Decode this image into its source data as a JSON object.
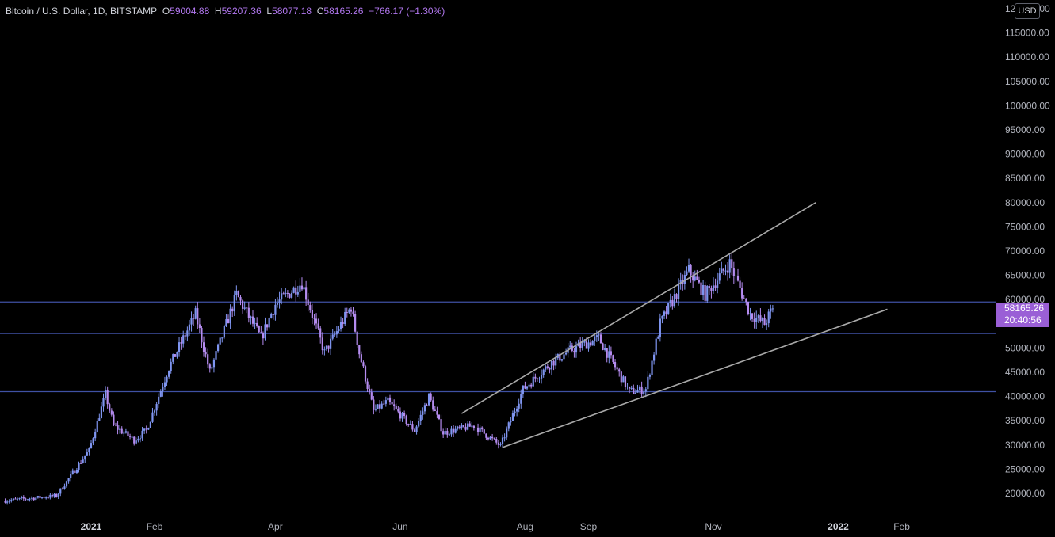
{
  "legend": {
    "symbol": "Bitcoin / U.S. Dollar, 1D, BITSTAMP",
    "open_label": "O",
    "open": "59004.88",
    "high_label": "H",
    "high": "59207.36",
    "low_label": "L",
    "low": "58077.18",
    "close_label": "C",
    "close": "58165.26",
    "change": "−766.17 (−1.30%)"
  },
  "currency": "USD",
  "last_price": {
    "price": "58165.26",
    "countdown": "20:40:56"
  },
  "colors": {
    "background": "#000000",
    "candle": "#7f95f0",
    "candle_alt": "#b58cf0",
    "horizontal_line": "#3f51a3",
    "trend_line": "#a8a8a8",
    "accent": "#9a5fd6"
  },
  "chart_data": {
    "type": "candlestick",
    "title": "Bitcoin / U.S. Dollar, 1D, BITSTAMP",
    "ylim": [
      15000,
      120000
    ],
    "y_ticks": [
      "120000.00",
      "115000.00",
      "110000.00",
      "105000.00",
      "100000.00",
      "95000.00",
      "90000.00",
      "85000.00",
      "80000.00",
      "75000.00",
      "70000.00",
      "65000.00",
      "60000.00",
      "55000.00",
      "50000.00",
      "45000.00",
      "40000.00",
      "35000.00",
      "30000.00",
      "25000.00",
      "20000.00"
    ],
    "x_ticks": [
      {
        "label": "2021",
        "date": "2021-01-01",
        "bold": true
      },
      {
        "label": "Feb",
        "date": "2021-02-01"
      },
      {
        "label": "Apr",
        "date": "2021-04-01"
      },
      {
        "label": "Jun",
        "date": "2021-06-01"
      },
      {
        "label": "Aug",
        "date": "2021-08-01"
      },
      {
        "label": "Sep",
        "date": "2021-09-01"
      },
      {
        "label": "Nov",
        "date": "2021-11-01"
      },
      {
        "label": "2022",
        "date": "2022-01-01",
        "bold": true
      },
      {
        "label": "Feb",
        "date": "2022-02-01"
      }
    ],
    "price_path": [
      [
        "2020-11-20",
        18500
      ],
      [
        "2020-12-15",
        19500
      ],
      [
        "2020-12-31",
        28900
      ],
      [
        "2021-01-08",
        40500
      ],
      [
        "2021-01-12",
        34000
      ],
      [
        "2021-01-22",
        31000
      ],
      [
        "2021-01-28",
        33000
      ],
      [
        "2021-02-08",
        46000
      ],
      [
        "2021-02-21",
        57000
      ],
      [
        "2021-02-28",
        45000
      ],
      [
        "2021-03-13",
        61000
      ],
      [
        "2021-03-25",
        52000
      ],
      [
        "2021-04-01",
        59000
      ],
      [
        "2021-04-14",
        63500
      ],
      [
        "2021-04-25",
        49000
      ],
      [
        "2021-05-08",
        58500
      ],
      [
        "2021-05-12",
        49000
      ],
      [
        "2021-05-19",
        37000
      ],
      [
        "2021-05-26",
        39000
      ],
      [
        "2021-06-08",
        33000
      ],
      [
        "2021-06-15",
        40000
      ],
      [
        "2021-06-22",
        32500
      ],
      [
        "2021-07-07",
        34000
      ],
      [
        "2021-07-20",
        29800
      ],
      [
        "2021-07-31",
        41500
      ],
      [
        "2021-08-14",
        47000
      ],
      [
        "2021-08-23",
        49500
      ],
      [
        "2021-09-06",
        52000
      ],
      [
        "2021-09-21",
        41000
      ],
      [
        "2021-09-29",
        41500
      ],
      [
        "2021-10-06",
        55000
      ],
      [
        "2021-10-20",
        66000
      ],
      [
        "2021-10-28",
        61000
      ],
      [
        "2021-11-09",
        67500
      ],
      [
        "2021-11-19",
        57000
      ],
      [
        "2021-11-26",
        55000
      ],
      [
        "2021-11-30",
        58165
      ]
    ],
    "horizontal_lines": [
      59500,
      53000,
      41000
    ],
    "trend_lines": [
      {
        "from": [
          "2021-07-01",
          36500
        ],
        "to": [
          "2021-12-21",
          80000
        ]
      },
      {
        "from": [
          "2021-07-21",
          29500
        ],
        "to": [
          "2022-01-25",
          58000
        ]
      }
    ],
    "last_value": 58165.26
  }
}
